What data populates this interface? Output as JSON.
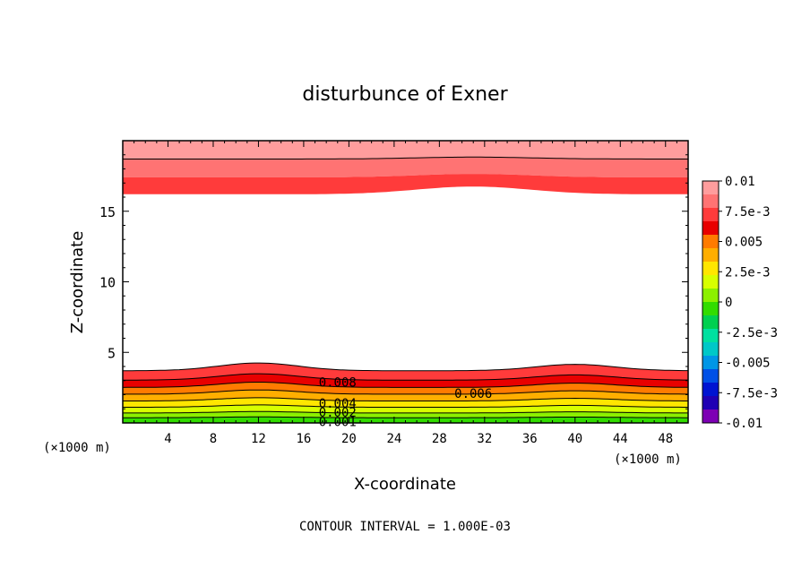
{
  "chart_data": {
    "type": "contour",
    "title": "disturbunce of Exner",
    "xlabel": "X-coordinate",
    "ylabel": "Z-coordinate",
    "x_unit": "(×1000 m)",
    "x_ticks": [
      "4",
      "8",
      "12",
      "16",
      "20",
      "24",
      "28",
      "32",
      "36",
      "40",
      "44",
      "48"
    ],
    "y_ticks": [
      "5",
      "10",
      "15"
    ],
    "xlim": [
      0,
      50
    ],
    "ylim": [
      0,
      20
    ],
    "footer": "CONTOUR INTERVAL = 1.000E-03",
    "colorbar": {
      "labels": [
        "0.01",
        "7.5e-3",
        "0.005",
        "2.5e-3",
        "0",
        "-2.5e-3",
        "-0.005",
        "-7.5e-3",
        "-0.01"
      ],
      "colors": [
        "#ff9d9d",
        "#ff7373",
        "#ff3b3b",
        "#e80000",
        "#ff7b00",
        "#ffae00",
        "#ffe600",
        "#d8ff00",
        "#8cf000",
        "#32dc00",
        "#00d050",
        "#00e0a0",
        "#00c8c8",
        "#0096e6",
        "#0050e6",
        "#0014d2",
        "#2000b4",
        "#7d00b4"
      ],
      "stops": [
        0.01,
        0.009,
        0.008,
        0.007,
        0.006,
        0.005,
        0.004,
        0.003,
        0.002,
        0.001,
        0,
        -0.001,
        -0.003,
        -0.005,
        -0.006,
        -0.007,
        -0.008,
        -0.009
      ]
    },
    "contour_labels": [
      {
        "text": "0.008",
        "x": 19,
        "z": 2.9
      },
      {
        "text": "0.006",
        "x": 31,
        "z": 2.1
      },
      {
        "text": "0.004",
        "x": 19,
        "z": 1.4
      },
      {
        "text": "0.002",
        "x": 19,
        "z": 0.75
      },
      {
        "text": "0.001",
        "x": 19,
        "z": 0.1
      }
    ],
    "field": {
      "top_band_levels": [
        0.01,
        0.009,
        0.008
      ],
      "bottom_band_levels": [
        0.008,
        0.007,
        0.006,
        0.005,
        0.004,
        0.003,
        0.002,
        0.001
      ]
    }
  }
}
